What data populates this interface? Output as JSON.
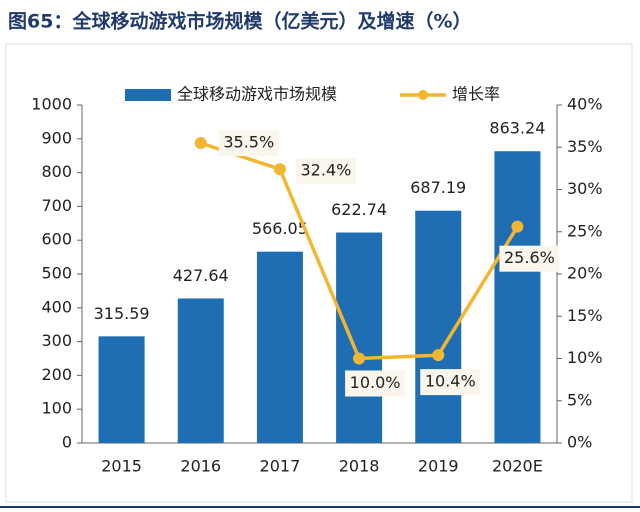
{
  "chart_data": {
    "type": "bar+line",
    "title": "图65：全球移动游戏市场规模（亿美元）及增速（%）",
    "categories": [
      "2015",
      "2016",
      "2017",
      "2018",
      "2019",
      "2020E"
    ],
    "series": [
      {
        "name": "全球移动游戏市场规模",
        "type": "bar",
        "color": "#1f6db3",
        "axis": "y",
        "values": [
          315.59,
          427.64,
          566.05,
          622.74,
          687.19,
          863.24
        ]
      },
      {
        "name": "增长率",
        "type": "line",
        "color": "#f2b630",
        "axis": "y2",
        "values": [
          null,
          35.5,
          32.4,
          10.0,
          10.4,
          25.6
        ],
        "value_labels": [
          null,
          "35.5%",
          "32.4%",
          "10.0%",
          "10.4%",
          "25.6%"
        ]
      }
    ],
    "ylim": [
      0,
      1000
    ],
    "yticks": [
      0,
      100,
      200,
      300,
      400,
      500,
      600,
      700,
      800,
      900,
      1000
    ],
    "y2lim": [
      0,
      40
    ],
    "y2ticks": [
      {
        "value": 0,
        "label": "0%"
      },
      {
        "value": 5,
        "label": "5%"
      },
      {
        "value": 10,
        "label": "10%"
      },
      {
        "value": 15,
        "label": "15%"
      },
      {
        "value": 20,
        "label": "20%"
      },
      {
        "value": 25,
        "label": "25%"
      },
      {
        "value": 30,
        "label": "30%"
      },
      {
        "value": 35,
        "label": "35%"
      },
      {
        "value": 40,
        "label": "40%"
      }
    ],
    "legend": "top"
  }
}
